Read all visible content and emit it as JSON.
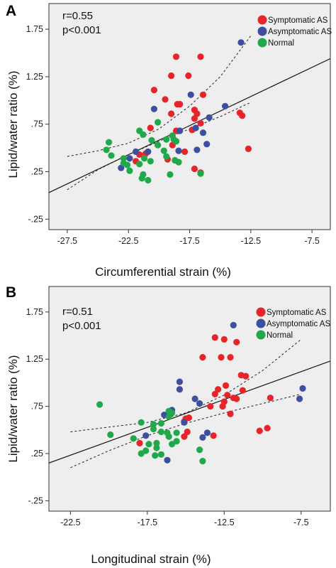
{
  "chart_data": [
    {
      "type": "scatter",
      "panel_label": "A",
      "xlabel": "Circumferential strain (%)",
      "ylabel": "Lipid/water ratio (%)",
      "xlim": [
        -29,
        -6
      ],
      "ylim": [
        -0.36,
        2.02
      ],
      "xticks": [
        "-27.5",
        "-22.5",
        "-17.5",
        "-12.5",
        "-7.5"
      ],
      "xtick_values": [
        -27.5,
        -22.5,
        -17.5,
        -12.5,
        -7.5
      ],
      "yticks": [
        "1.75",
        "1.25",
        ".75",
        ".25",
        "-.25"
      ],
      "ytick_values": [
        1.75,
        1.25,
        0.75,
        0.25,
        -0.25
      ],
      "stats": [
        "r=0.55",
        "p<0.001"
      ],
      "fit_line": {
        "x": [
          -29,
          -6
        ],
        "y": [
          0.03,
          1.44
        ]
      },
      "ci_lower": {
        "x": [
          -27.5,
          -25,
          -22.5,
          -20,
          -17.5,
          -15,
          -12.5
        ],
        "y": [
          0.06,
          0.27,
          0.43,
          0.57,
          0.7,
          0.83,
          0.98
        ]
      },
      "ci_upper": {
        "x": [
          -27.5,
          -25,
          -22.5,
          -20,
          -17.5,
          -15,
          -12.5
        ],
        "y": [
          0.41,
          0.47,
          0.55,
          0.7,
          0.94,
          1.25,
          1.68
        ]
      },
      "series": [
        {
          "name": "Symptomatic AS",
          "color": "#e8242b",
          "points": [
            [
              -18.6,
              1.46
            ],
            [
              -16.6,
              1.46
            ],
            [
              -19,
              1.26
            ],
            [
              -17.6,
              1.26
            ],
            [
              -20.4,
              1.11
            ],
            [
              -16.4,
              1.06
            ],
            [
              -19.5,
              1.01
            ],
            [
              -18.5,
              0.96
            ],
            [
              -19.0,
              0.86
            ],
            [
              -18.3,
              0.96
            ],
            [
              -17.1,
              0.9
            ],
            [
              -16.9,
              0.86
            ],
            [
              -16.6,
              0.76
            ],
            [
              -17.3,
              0.69
            ],
            [
              -13.4,
              0.87
            ],
            [
              -13.2,
              0.84
            ],
            [
              -17.1,
              0.81
            ],
            [
              -20.7,
              0.71
            ],
            [
              -18.6,
              0.68
            ],
            [
              -18.6,
              0.57
            ],
            [
              -18.9,
              0.53
            ],
            [
              -21.1,
              0.44
            ],
            [
              -21.9,
              0.36
            ],
            [
              -21.6,
              0.43
            ],
            [
              -17.1,
              0.28
            ],
            [
              -16.6,
              0.24
            ],
            [
              -12.7,
              0.49
            ],
            [
              -19.3,
              0.38
            ],
            [
              -17.9,
              0.46
            ]
          ]
        },
        {
          "name": "Asymptomatic AS",
          "color": "#3e4fa2",
          "points": [
            [
              -13.3,
              1.61
            ],
            [
              -17.4,
              1.06
            ],
            [
              -20.4,
              0.91
            ],
            [
              -14.6,
              0.94
            ],
            [
              -15.9,
              0.82
            ],
            [
              -16.4,
              0.66
            ],
            [
              -17.0,
              0.71
            ],
            [
              -18.3,
              0.68
            ],
            [
              -16.1,
              0.54
            ],
            [
              -16.9,
              0.48
            ],
            [
              -21.9,
              0.46
            ],
            [
              -20.9,
              0.46
            ],
            [
              -18.4,
              0.47
            ],
            [
              -23.1,
              0.29
            ],
            [
              -22.4,
              0.39
            ]
          ]
        },
        {
          "name": "Normal",
          "color": "#21a84a",
          "points": [
            [
              -24.1,
              0.56
            ],
            [
              -24.3,
              0.48
            ],
            [
              -21.6,
              0.68
            ],
            [
              -21.3,
              0.64
            ],
            [
              -20.1,
              0.77
            ],
            [
              -20.6,
              0.58
            ],
            [
              -19.4,
              0.59
            ],
            [
              -20.1,
              0.53
            ],
            [
              -18.8,
              0.59
            ],
            [
              -18.6,
              0.57
            ],
            [
              -19.6,
              0.47
            ],
            [
              -19.4,
              0.41
            ],
            [
              -21.2,
              0.39
            ],
            [
              -20.7,
              0.36
            ],
            [
              -22.9,
              0.39
            ],
            [
              -23.9,
              0.42
            ],
            [
              -22.9,
              0.34
            ],
            [
              -21.6,
              0.33
            ],
            [
              -18.7,
              0.37
            ],
            [
              -18.4,
              0.35
            ],
            [
              -22.4,
              0.26
            ],
            [
              -21.3,
              0.22
            ],
            [
              -21.4,
              0.18
            ],
            [
              -20.9,
              0.16
            ],
            [
              -16.6,
              0.23
            ],
            [
              -19.1,
              0.22
            ],
            [
              -18.9,
              0.63
            ],
            [
              -22.6,
              0.32
            ]
          ]
        }
      ],
      "legend": [
        {
          "label": "Symptomatic AS",
          "color": "#e8242b"
        },
        {
          "label": "Asymptomatic AS",
          "color": "#3e4fa2"
        },
        {
          "label": "Normal",
          "color": "#21a84a"
        }
      ],
      "legend_position": "top-right",
      "grid": false,
      "background": "#eeeeee"
    },
    {
      "type": "scatter",
      "panel_label": "B",
      "xlabel": "Longitudinal strain (%)",
      "ylabel": "Lipid/water ratio (%)",
      "xlim": [
        -23.9,
        -5.6
      ],
      "ylim": [
        -0.36,
        2.02
      ],
      "xticks": [
        "-22.5",
        "-17.5",
        "-12.5",
        "-7.5"
      ],
      "xtick_values": [
        -22.5,
        -17.5,
        -12.5,
        -7.5
      ],
      "yticks": [
        "1.75",
        "1.25",
        ".75",
        ".25",
        "-.25"
      ],
      "ytick_values": [
        1.75,
        1.25,
        0.75,
        0.25,
        -0.25
      ],
      "stats": [
        "r=0.51",
        "p<0.001"
      ],
      "fit_line": {
        "x": [
          -23.9,
          -5.6
        ],
        "y": [
          0.15,
          1.23
        ]
      },
      "ci_lower": {
        "x": [
          -22.5,
          -20,
          -17.5,
          -15,
          -12.5,
          -10,
          -7.5
        ],
        "y": [
          0.1,
          0.28,
          0.44,
          0.57,
          0.68,
          0.78,
          0.88
        ]
      },
      "ci_upper": {
        "x": [
          -22.5,
          -20,
          -17.5,
          -15,
          -12.5,
          -10,
          -7.5
        ],
        "y": [
          0.48,
          0.53,
          0.58,
          0.68,
          0.87,
          1.13,
          1.46
        ]
      },
      "series": [
        {
          "name": "Symptomatic AS",
          "color": "#e8242b",
          "points": [
            [
              -13.1,
              1.48
            ],
            [
              -12.5,
              1.46
            ],
            [
              -11.7,
              1.43
            ],
            [
              -13.9,
              1.27
            ],
            [
              -12.7,
              1.27
            ],
            [
              -12.1,
              1.27
            ],
            [
              -11.4,
              1.08
            ],
            [
              -11.1,
              1.07
            ],
            [
              -12.4,
              0.97
            ],
            [
              -12.9,
              0.93
            ],
            [
              -11.3,
              0.92
            ],
            [
              -12.3,
              0.87
            ],
            [
              -11.9,
              0.84
            ],
            [
              -12.5,
              0.8
            ],
            [
              -13.1,
              0.88
            ],
            [
              -11.7,
              0.83
            ],
            [
              -12.6,
              0.75
            ],
            [
              -13.4,
              0.75
            ],
            [
              -9.5,
              0.84
            ],
            [
              -12.1,
              0.67
            ],
            [
              -15.0,
              0.62
            ],
            [
              -14.8,
              0.63
            ],
            [
              -15.1,
              0.59
            ],
            [
              -10.2,
              0.49
            ],
            [
              -9.7,
              0.52
            ],
            [
              -18.0,
              0.36
            ],
            [
              -15.1,
              0.43
            ],
            [
              -13.2,
              0.44
            ],
            [
              -14.9,
              0.48
            ]
          ]
        },
        {
          "name": "Asymptomatic AS",
          "color": "#3e4fa2",
          "points": [
            [
              -11.9,
              1.61
            ],
            [
              -15.4,
              1.01
            ],
            [
              -15.4,
              0.93
            ],
            [
              -7.4,
              0.94
            ],
            [
              -14.4,
              0.83
            ],
            [
              -14.1,
              0.78
            ],
            [
              -7.6,
              0.83
            ],
            [
              -16.4,
              0.66
            ],
            [
              -15.1,
              0.58
            ],
            [
              -13.6,
              0.47
            ],
            [
              -13.9,
              0.42
            ],
            [
              -15.9,
              0.71
            ],
            [
              -16.2,
              0.18
            ],
            [
              -17.6,
              0.44
            ]
          ]
        },
        {
          "name": "Normal",
          "color": "#21a84a",
          "points": [
            [
              -20.6,
              0.77
            ],
            [
              -17.9,
              0.58
            ],
            [
              -17.1,
              0.56
            ],
            [
              -16.1,
              0.7
            ],
            [
              -15.9,
              0.68
            ],
            [
              -16.1,
              0.64
            ],
            [
              -16.6,
              0.57
            ],
            [
              -17.1,
              0.51
            ],
            [
              -16.6,
              0.48
            ],
            [
              -16.2,
              0.47
            ],
            [
              -16.1,
              0.43
            ],
            [
              -15.6,
              0.38
            ],
            [
              -15.9,
              0.35
            ],
            [
              -16.9,
              0.36
            ],
            [
              -17.4,
              0.35
            ],
            [
              -16.9,
              0.31
            ],
            [
              -17.6,
              0.28
            ],
            [
              -17.9,
              0.25
            ],
            [
              -17.0,
              0.23
            ],
            [
              -18.4,
              0.41
            ],
            [
              -19.9,
              0.45
            ],
            [
              -14.1,
              0.29
            ],
            [
              -13.9,
              0.17
            ],
            [
              -16.6,
              0.24
            ],
            [
              -15.6,
              0.47
            ]
          ]
        }
      ],
      "legend": [
        {
          "label": "Symptomatic AS",
          "color": "#e8242b"
        },
        {
          "label": "Asymptomatic AS",
          "color": "#3e4fa2"
        },
        {
          "label": "Normal",
          "color": "#21a84a"
        }
      ],
      "legend_position": "top-right",
      "grid": false,
      "background": "#eeeeee"
    }
  ]
}
